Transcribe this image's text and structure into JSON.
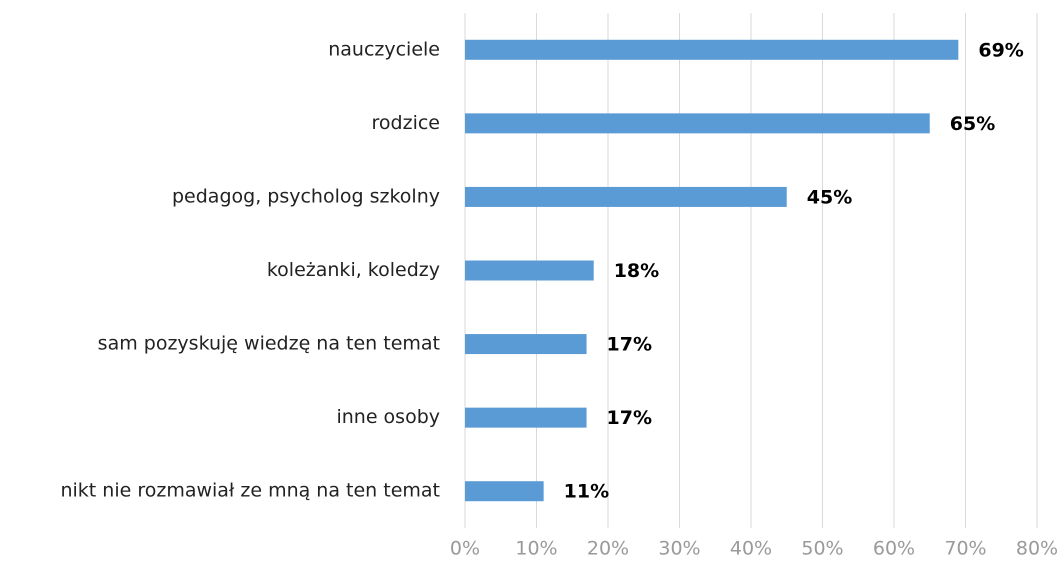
{
  "chart_data": {
    "type": "bar",
    "orientation": "horizontal",
    "categories": [
      "nauczyciele",
      "rodzice",
      "pedagog, psycholog szkolny",
      "koleżanki, koledzy",
      "sam pozyskuję wiedzę na ten temat",
      "inne osoby",
      "nikt nie rozmawiał ze mną na ten temat"
    ],
    "values": [
      69,
      65,
      45,
      18,
      17,
      17,
      11
    ],
    "value_labels": [
      "69%",
      "65%",
      "45%",
      "18%",
      "17%",
      "17%",
      "11%"
    ],
    "color": "#5b9bd5",
    "xlim": [
      0,
      80
    ],
    "xticks": [
      {
        "value": 0,
        "label": "0%"
      },
      {
        "value": 10,
        "label": "10%"
      },
      {
        "value": 20,
        "label": "20%"
      },
      {
        "value": 30,
        "label": "30%"
      },
      {
        "value": 40,
        "label": "40%"
      },
      {
        "value": 50,
        "label": "50%"
      },
      {
        "value": 60,
        "label": "60%"
      },
      {
        "value": 70,
        "label": "70%"
      },
      {
        "value": 80,
        "label": "80%"
      }
    ],
    "grid": true
  }
}
